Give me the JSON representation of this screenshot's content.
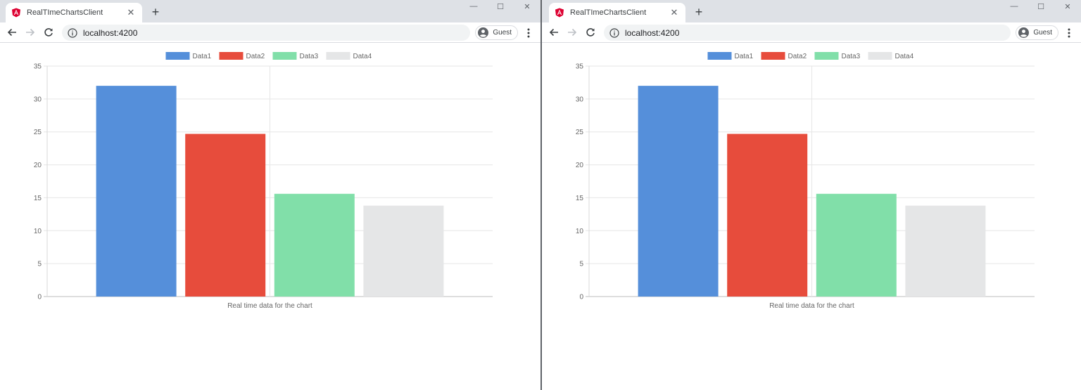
{
  "windows": [
    {
      "tab": {
        "title": "RealTImeChartsClient"
      },
      "address": {
        "url": "localhost:4200"
      },
      "profile": {
        "label": "Guest"
      }
    },
    {
      "tab": {
        "title": "RealTImeChartsClient"
      },
      "address": {
        "url": "localhost:4200"
      },
      "profile": {
        "label": "Guest"
      }
    }
  ],
  "icons": {
    "favicon": "angular-icon",
    "close": "close-icon",
    "new_tab": "plus-icon",
    "back": "arrow-left-icon",
    "forward": "arrow-right-icon",
    "reload": "reload-icon",
    "info": "info-icon",
    "avatar": "user-avatar-icon",
    "menu": "kebab-menu-icon"
  },
  "chart_data": [
    {
      "type": "bar",
      "xlabel": "Real time data for the chart",
      "ylim": [
        0,
        35
      ],
      "yticks": [
        "0",
        "5",
        "10",
        "15",
        "20",
        "25",
        "30",
        "35"
      ],
      "grid": true,
      "legend_position": "top",
      "series": [
        {
          "name": "Data1",
          "values": [
            32
          ],
          "color": "#558FDA"
        },
        {
          "name": "Data2",
          "values": [
            24.7
          ],
          "color": "#E74C3C"
        },
        {
          "name": "Data3",
          "values": [
            15.6
          ],
          "color": "#81DFA9"
        },
        {
          "name": "Data4",
          "values": [
            13.8
          ],
          "color": "#E5E6E7"
        }
      ]
    },
    {
      "type": "bar",
      "xlabel": "Real time data for the chart",
      "ylim": [
        0,
        35
      ],
      "yticks": [
        "0",
        "5",
        "10",
        "15",
        "20",
        "25",
        "30",
        "35"
      ],
      "grid": true,
      "legend_position": "top",
      "series": [
        {
          "name": "Data1",
          "values": [
            32
          ],
          "color": "#558FDA"
        },
        {
          "name": "Data2",
          "values": [
            24.7
          ],
          "color": "#E74C3C"
        },
        {
          "name": "Data3",
          "values": [
            15.6
          ],
          "color": "#81DFA9"
        },
        {
          "name": "Data4",
          "values": [
            13.8
          ],
          "color": "#E5E6E7"
        }
      ]
    }
  ]
}
